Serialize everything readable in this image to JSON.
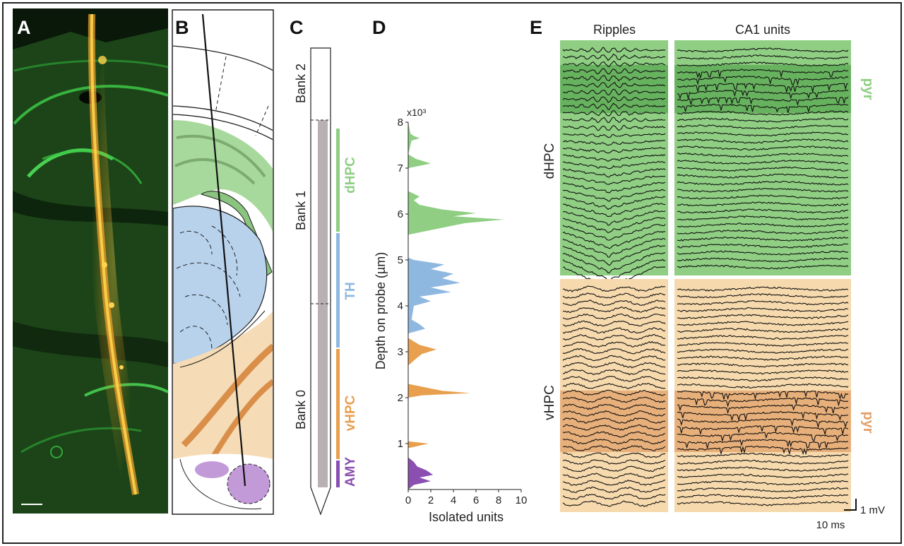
{
  "panels": {
    "a": {
      "label": "A"
    },
    "b": {
      "label": "B"
    },
    "c": {
      "label": "C",
      "banks": [
        "Bank 2",
        "Bank 1",
        "Bank 0"
      ],
      "regions": [
        {
          "name": "dHPC",
          "color": "#8fce83"
        },
        {
          "name": "TH",
          "color": "#8fb8e0"
        },
        {
          "name": "vHPC",
          "color": "#e8a04f"
        },
        {
          "name": "AMY",
          "color": "#8a4fb0"
        }
      ]
    },
    "d": {
      "label": "D",
      "multiplier": "x10³"
    },
    "e": {
      "label": "E",
      "col_titles": [
        "Ripples",
        "CA1 units"
      ],
      "row_labels": [
        "dHPC",
        "vHPC"
      ],
      "pyr_label": "pyr",
      "scale_time": "10 ms",
      "scale_voltage": "1 mV",
      "colors": {
        "dhpc_bg": "#8fce83",
        "dhpc_band": "#5aa852",
        "vhpc_bg": "#f6d9ad",
        "vhpc_band": "#e2a06a"
      }
    }
  },
  "chart_data": {
    "type": "area",
    "orientation": "horizontal",
    "xlabel": "Isolated units",
    "ylabel": "Depth on probe (µm)",
    "y_multiplier": "x10³",
    "xlim": [
      0,
      10
    ],
    "ylim": [
      0,
      8
    ],
    "xticks": [
      0,
      2,
      4,
      6,
      8,
      10
    ],
    "yticks": [
      1,
      2,
      3,
      4,
      5,
      6,
      7,
      8
    ],
    "series": [
      {
        "name": "dHPC",
        "color": "#8fce83",
        "depth": [
          5.55,
          5.7,
          5.8,
          5.88,
          5.95,
          6.02,
          6.1,
          6.2,
          6.3,
          6.38,
          6.5,
          7.0,
          7.05,
          7.1,
          7.2,
          7.3,
          7.6,
          7.65,
          7.7,
          7.75,
          8.0
        ],
        "units": [
          0,
          3,
          5,
          8.5,
          4,
          6,
          3,
          1,
          0.5,
          1,
          0,
          0,
          1,
          2,
          0.7,
          0,
          0.3,
          1,
          0.5,
          0.2,
          0
        ]
      },
      {
        "name": "TH",
        "color": "#8fb8e0",
        "depth": [
          3.4,
          3.5,
          3.6,
          3.7,
          4.0,
          4.1,
          4.2,
          4.3,
          4.4,
          4.5,
          4.6,
          4.7,
          4.8,
          4.9,
          5.0,
          5.05
        ],
        "units": [
          0,
          1.5,
          1,
          0.3,
          0.5,
          2,
          1,
          3.8,
          2,
          4.6,
          3,
          4,
          2,
          3.2,
          0.5,
          0
        ]
      },
      {
        "name": "vHPC",
        "color": "#e8a04f",
        "depth": [
          0.9,
          1.0,
          1.05,
          2.0,
          2.05,
          2.1,
          2.15,
          2.2,
          2.3,
          2.7,
          2.85,
          2.95,
          3.05,
          3.15,
          3.3
        ],
        "units": [
          0,
          1.8,
          0,
          0,
          1.2,
          5.5,
          3,
          2,
          0,
          0,
          0.7,
          1.2,
          2.5,
          1,
          0
        ]
      },
      {
        "name": "AMY",
        "color": "#8a4fb0",
        "depth": [
          0.0,
          0.1,
          0.18,
          0.26,
          0.32,
          0.42,
          0.5,
          0.6,
          0.7
        ],
        "units": [
          0,
          0.5,
          2,
          1,
          2.2,
          1.6,
          0.8,
          0.5,
          0
        ]
      }
    ]
  }
}
